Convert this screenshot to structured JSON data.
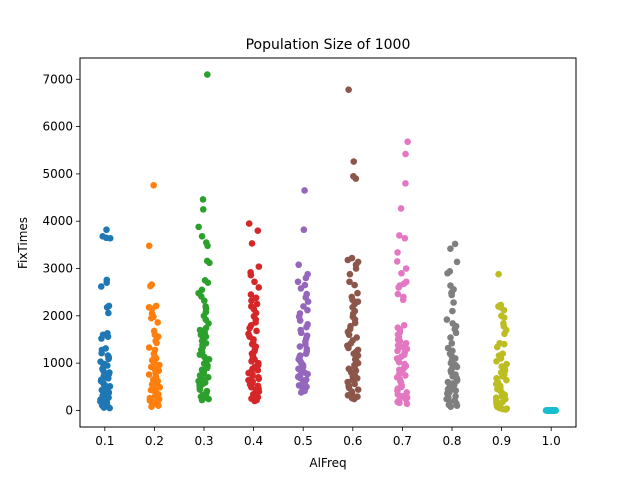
{
  "chart_data": {
    "type": "scatter",
    "subtype": "strip",
    "title": "Population Size of 1000",
    "xlabel": "AlFreq",
    "ylabel": "FixTimes",
    "categories": [
      "0.1",
      "0.2",
      "0.3",
      "0.4",
      "0.5",
      "0.6",
      "0.7",
      "0.8",
      "0.9",
      "1.0"
    ],
    "ylim": [
      -350,
      7450
    ],
    "yticks": [
      0,
      1000,
      2000,
      3000,
      4000,
      5000,
      6000,
      7000
    ],
    "grid": false,
    "legend": "none",
    "colors": [
      "#1f77b4",
      "#ff7f0e",
      "#2ca02c",
      "#d62728",
      "#9467bd",
      "#8c564b",
      "#e377c2",
      "#7f7f7f",
      "#bcbd22",
      "#17becf"
    ],
    "series": [
      {
        "category": "0.1",
        "values": [
          3820,
          3680,
          3650,
          3640,
          2760,
          2700,
          2620,
          2210,
          2180,
          2060,
          1630,
          1600,
          1560,
          1520,
          1310,
          1280,
          1210,
          1160,
          1120,
          1090,
          1030,
          980,
          950,
          920,
          880,
          840,
          800,
          770,
          740,
          710,
          680,
          650,
          620,
          600,
          570,
          540,
          510,
          490,
          460,
          430,
          400,
          380,
          350,
          320,
          300,
          270,
          250,
          230,
          210,
          190,
          170,
          150,
          130,
          110,
          90,
          70,
          60,
          50
        ]
      },
      {
        "category": "0.2",
        "values": [
          4760,
          3480,
          2660,
          2630,
          2210,
          2180,
          2150,
          2050,
          1980,
          1950,
          1860,
          1680,
          1600,
          1560,
          1470,
          1430,
          1330,
          1280,
          1200,
          1150,
          1100,
          1060,
          1010,
          960,
          920,
          880,
          840,
          800,
          760,
          720,
          690,
          650,
          620,
          580,
          550,
          520,
          490,
          460,
          430,
          400,
          370,
          340,
          310,
          290,
          260,
          240,
          210,
          190,
          170,
          150,
          120,
          100,
          80
        ]
      },
      {
        "category": "0.3",
        "values": [
          7100,
          4460,
          4250,
          3880,
          3680,
          3550,
          3480,
          3160,
          3120,
          2750,
          2700,
          2550,
          2480,
          2410,
          2320,
          2200,
          2150,
          2080,
          2000,
          1920,
          1840,
          1740,
          1700,
          1640,
          1600,
          1560,
          1510,
          1470,
          1420,
          1380,
          1330,
          1280,
          1230,
          1180,
          1130,
          1080,
          1040,
          990,
          950,
          900,
          860,
          820,
          780,
          740,
          700,
          660,
          620,
          590,
          560,
          530,
          500,
          470,
          440,
          410,
          380,
          350,
          320,
          290,
          260,
          240,
          220
        ]
      },
      {
        "category": "0.4",
        "values": [
          3950,
          3800,
          3530,
          3040,
          2920,
          2860,
          2720,
          2600,
          2450,
          2380,
          2320,
          2250,
          2200,
          2140,
          2060,
          1990,
          1920,
          1860,
          1800,
          1740,
          1680,
          1620,
          1560,
          1500,
          1450,
          1400,
          1350,
          1300,
          1250,
          1200,
          1160,
          1120,
          1080,
          1040,
          1000,
          960,
          920,
          880,
          850,
          820,
          790,
          760,
          730,
          700,
          670,
          640,
          610,
          580,
          550,
          520,
          490,
          460,
          430,
          400,
          370,
          340,
          310,
          280,
          250,
          220,
          200
        ]
      },
      {
        "category": "0.5",
        "values": [
          4650,
          3820,
          3080,
          2880,
          2800,
          2720,
          2650,
          2580,
          2460,
          2390,
          2300,
          2200,
          2120,
          2050,
          1980,
          1900,
          1820,
          1760,
          1700,
          1640,
          1580,
          1520,
          1460,
          1400,
          1350,
          1300,
          1250,
          1200,
          1160,
          1120,
          1080,
          1040,
          1000,
          960,
          920,
          880,
          840,
          800,
          770,
          740,
          710,
          680,
          650,
          620,
          590,
          560,
          530,
          500,
          470,
          440,
          410,
          380
        ]
      },
      {
        "category": "0.6",
        "values": [
          6780,
          5260,
          4950,
          4900,
          3220,
          3180,
          3140,
          3080,
          3000,
          2880,
          2720,
          2650,
          2480,
          2400,
          2340,
          2300,
          2250,
          2180,
          2100,
          2040,
          1980,
          1920,
          1850,
          1780,
          1720,
          1660,
          1600,
          1540,
          1480,
          1420,
          1370,
          1320,
          1280,
          1240,
          1200,
          1160,
          1120,
          1080,
          1040,
          1000,
          960,
          920,
          880,
          840,
          800,
          760,
          720,
          680,
          640,
          600,
          560,
          520,
          480,
          440,
          400,
          360,
          320,
          290,
          260,
          240
        ]
      },
      {
        "category": "0.7",
        "values": [
          5680,
          5420,
          4800,
          4270,
          3700,
          3640,
          3340,
          3150,
          3000,
          2900,
          2720,
          2680,
          2640,
          2600,
          2460,
          2400,
          2340,
          1800,
          1750,
          1700,
          1650,
          1600,
          1550,
          1500,
          1460,
          1420,
          1380,
          1340,
          1300,
          1260,
          1220,
          1180,
          1140,
          1100,
          1060,
          1020,
          980,
          940,
          900,
          860,
          820,
          780,
          740,
          700,
          660,
          620,
          580,
          540,
          500,
          460,
          420,
          380,
          340,
          300,
          270,
          240,
          210,
          180,
          160,
          140
        ]
      },
      {
        "category": "0.8",
        "values": [
          3520,
          3420,
          3140,
          2940,
          2900,
          2640,
          2560,
          2500,
          2480,
          2440,
          2280,
          2100,
          1920,
          1840,
          1780,
          1720,
          1640,
          1540,
          1420,
          1320,
          1260,
          1200,
          1150,
          1100,
          1050,
          1000,
          960,
          920,
          880,
          840,
          800,
          760,
          720,
          690,
          660,
          630,
          600,
          570,
          540,
          510,
          480,
          450,
          420,
          390,
          360,
          330,
          300,
          270,
          240,
          210,
          180,
          150,
          120,
          100,
          80
        ]
      },
      {
        "category": "0.9",
        "values": [
          2880,
          2230,
          2200,
          2180,
          2120,
          2000,
          1960,
          1840,
          1780,
          1700,
          1620,
          1420,
          1400,
          1340,
          1200,
          1160,
          1100,
          1040,
          980,
          930,
          880,
          840,
          800,
          760,
          720,
          680,
          640,
          600,
          560,
          520,
          480,
          450,
          420,
          390,
          360,
          330,
          300,
          270,
          240,
          210,
          180,
          150,
          130,
          110,
          90,
          70,
          50,
          40,
          30,
          20
        ]
      },
      {
        "category": "1.0",
        "values": [
          0,
          0,
          0,
          0,
          0,
          0,
          0,
          0,
          0,
          0,
          0,
          0,
          0,
          0,
          0,
          0,
          0,
          0,
          0,
          0,
          0,
          0,
          0,
          0,
          0,
          0,
          0,
          0,
          0,
          0,
          0,
          0,
          0,
          0,
          0,
          0,
          0,
          0,
          0,
          0
        ]
      }
    ]
  }
}
